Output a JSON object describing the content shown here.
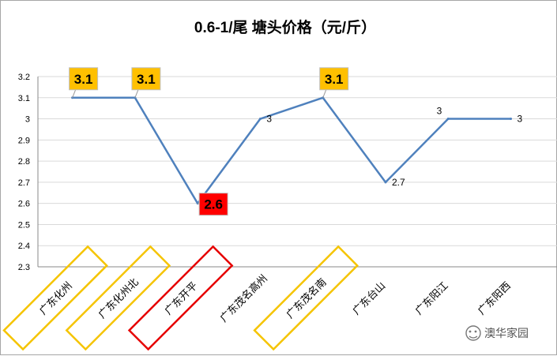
{
  "chart_data": {
    "type": "line",
    "title": "0.6-1/尾  塘头价格（元/斤）",
    "categories": [
      "广东化州",
      "广东化州北",
      "广东开平",
      "广东茂名高州",
      "广东茂名南",
      "广东台山",
      "广东阳江",
      "广东阳西"
    ],
    "series": [
      {
        "values": [
          3.1,
          3.1,
          2.6,
          3.0,
          3.1,
          2.7,
          3.0,
          3.0
        ],
        "color": "#4f81bd"
      }
    ],
    "data_labels": [
      "3.1",
      "3.1",
      "2.6",
      "3",
      "3.1",
      "2.7",
      "3",
      "3"
    ],
    "label_styles": [
      "highlight-yellow",
      "highlight-yellow",
      "highlight-red",
      "plain",
      "highlight-yellow",
      "plain",
      "plain",
      "plain"
    ],
    "category_box_colors": [
      "#f5c400",
      "#f5c400",
      "#e60000",
      "",
      "#f5c400",
      "",
      "",
      ""
    ],
    "ylim": [
      2.3,
      3.2
    ],
    "yticks": [
      "2.3",
      "2.4",
      "2.5",
      "2.6",
      "2.7",
      "2.8",
      "2.9",
      "3",
      "3.1",
      "3.2"
    ],
    "grid": true,
    "legend": "none",
    "colors": {
      "highlight-yellow": "#ffc000",
      "highlight-red": "#ff0000"
    }
  },
  "watermark": {
    "text": "澳华家园",
    "icon": "wechat-icon"
  }
}
